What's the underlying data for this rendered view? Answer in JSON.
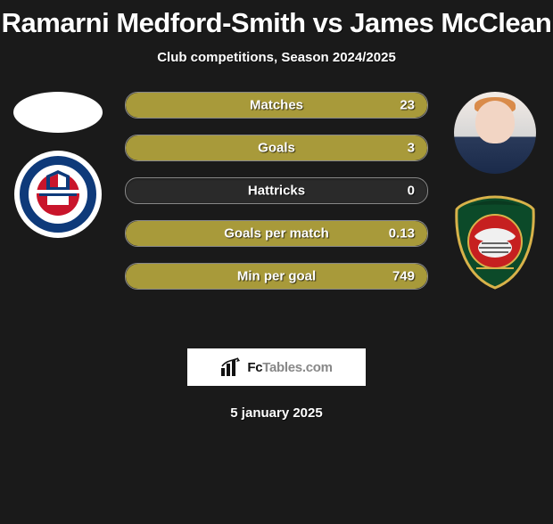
{
  "title": "Ramarni Medford-Smith vs James McClean",
  "subtitle": "Club competitions, Season 2024/2025",
  "date": "5 january 2025",
  "fctables_label": "FcTables.com",
  "stats": [
    {
      "label": "Matches",
      "value_right": "23",
      "fill_pct": 100
    },
    {
      "label": "Goals",
      "value_right": "3",
      "fill_pct": 100
    },
    {
      "label": "Hattricks",
      "value_right": "0",
      "fill_pct": 0
    },
    {
      "label": "Goals per match",
      "value_right": "0.13",
      "fill_pct": 100
    },
    {
      "label": "Min per goal",
      "value_right": "749",
      "fill_pct": 100
    }
  ],
  "colors": {
    "bar_fill": "#a89a3a",
    "bar_bg": "#2a2a2a",
    "bar_border": "#888888",
    "page_bg": "#1a1a1a",
    "crest_right_green": "#0c4a29",
    "crest_right_red": "#c62020",
    "crest_left_blue": "#0e3a7a",
    "crest_left_red": "#c9152b"
  }
}
